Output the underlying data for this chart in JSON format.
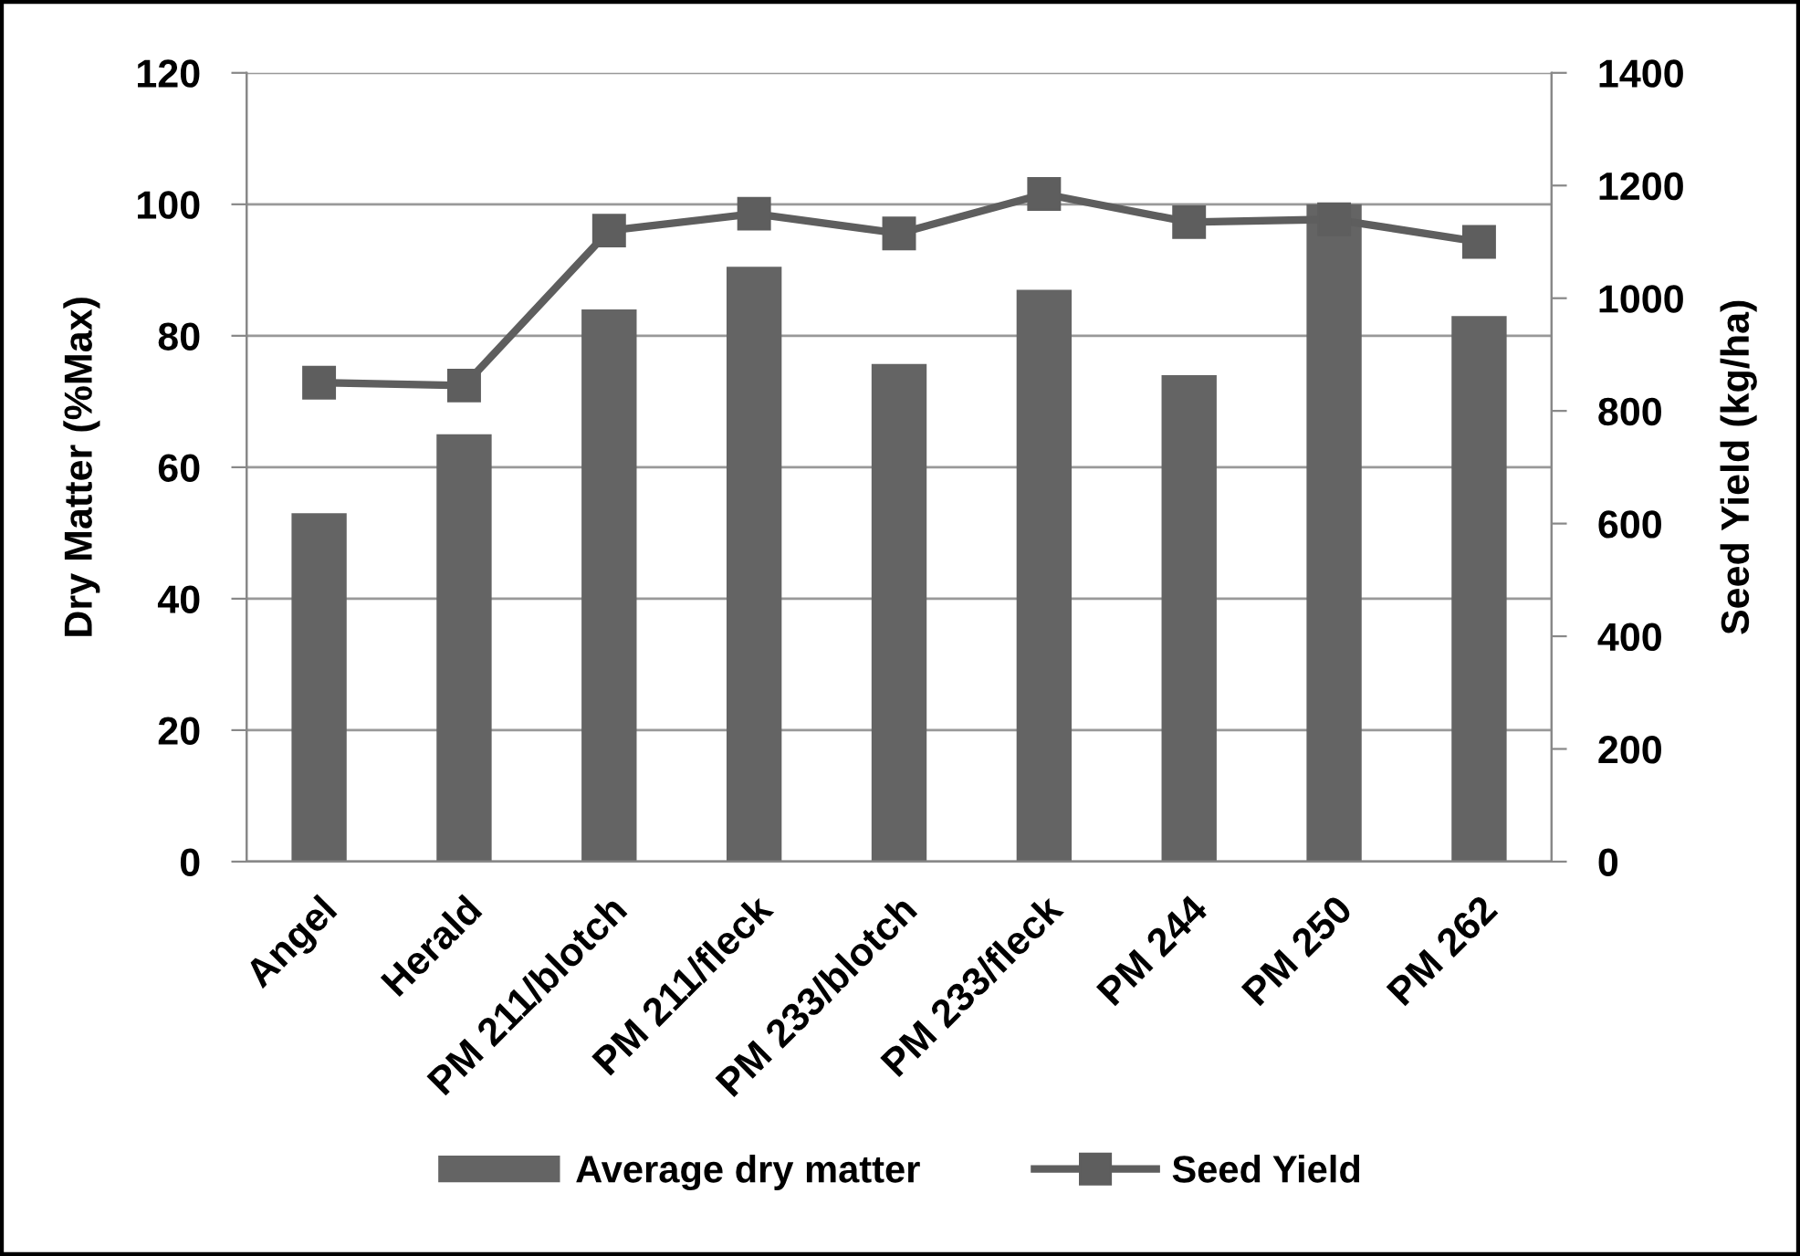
{
  "chart_data": {
    "type": "bar",
    "categories": [
      "Angel",
      "Herald",
      "PM 211/blotch",
      "PM 211/fleck",
      "PM 233/blotch",
      "PM 233/fleck",
      "PM 244",
      "PM 250",
      "PM 262"
    ],
    "ylabel": "Dry Matter (%Max)",
    "y2label": "Seed Yield (kg/ha)",
    "ylim": [
      0,
      120
    ],
    "yticks": [
      0,
      20,
      40,
      60,
      80,
      100,
      120
    ],
    "y2lim": [
      0,
      1400
    ],
    "y2ticks": [
      0,
      200,
      400,
      600,
      800,
      1000,
      1200,
      1400
    ],
    "grid": "y",
    "legend": "bottom",
    "series": [
      {
        "name": "Average dry matter",
        "color": "#646464",
        "values": [
          53,
          65,
          84,
          90.5,
          75.7,
          87,
          74,
          100,
          83
        ]
      },
      {
        "name": "Seed Yield",
        "type": "line",
        "axis": "y2",
        "color": "#5e5e5e",
        "marker": "square",
        "line_style": "solid",
        "values": [
          850,
          845,
          1120,
          1150,
          1115,
          1185,
          1135,
          1140,
          1100
        ]
      }
    ]
  }
}
